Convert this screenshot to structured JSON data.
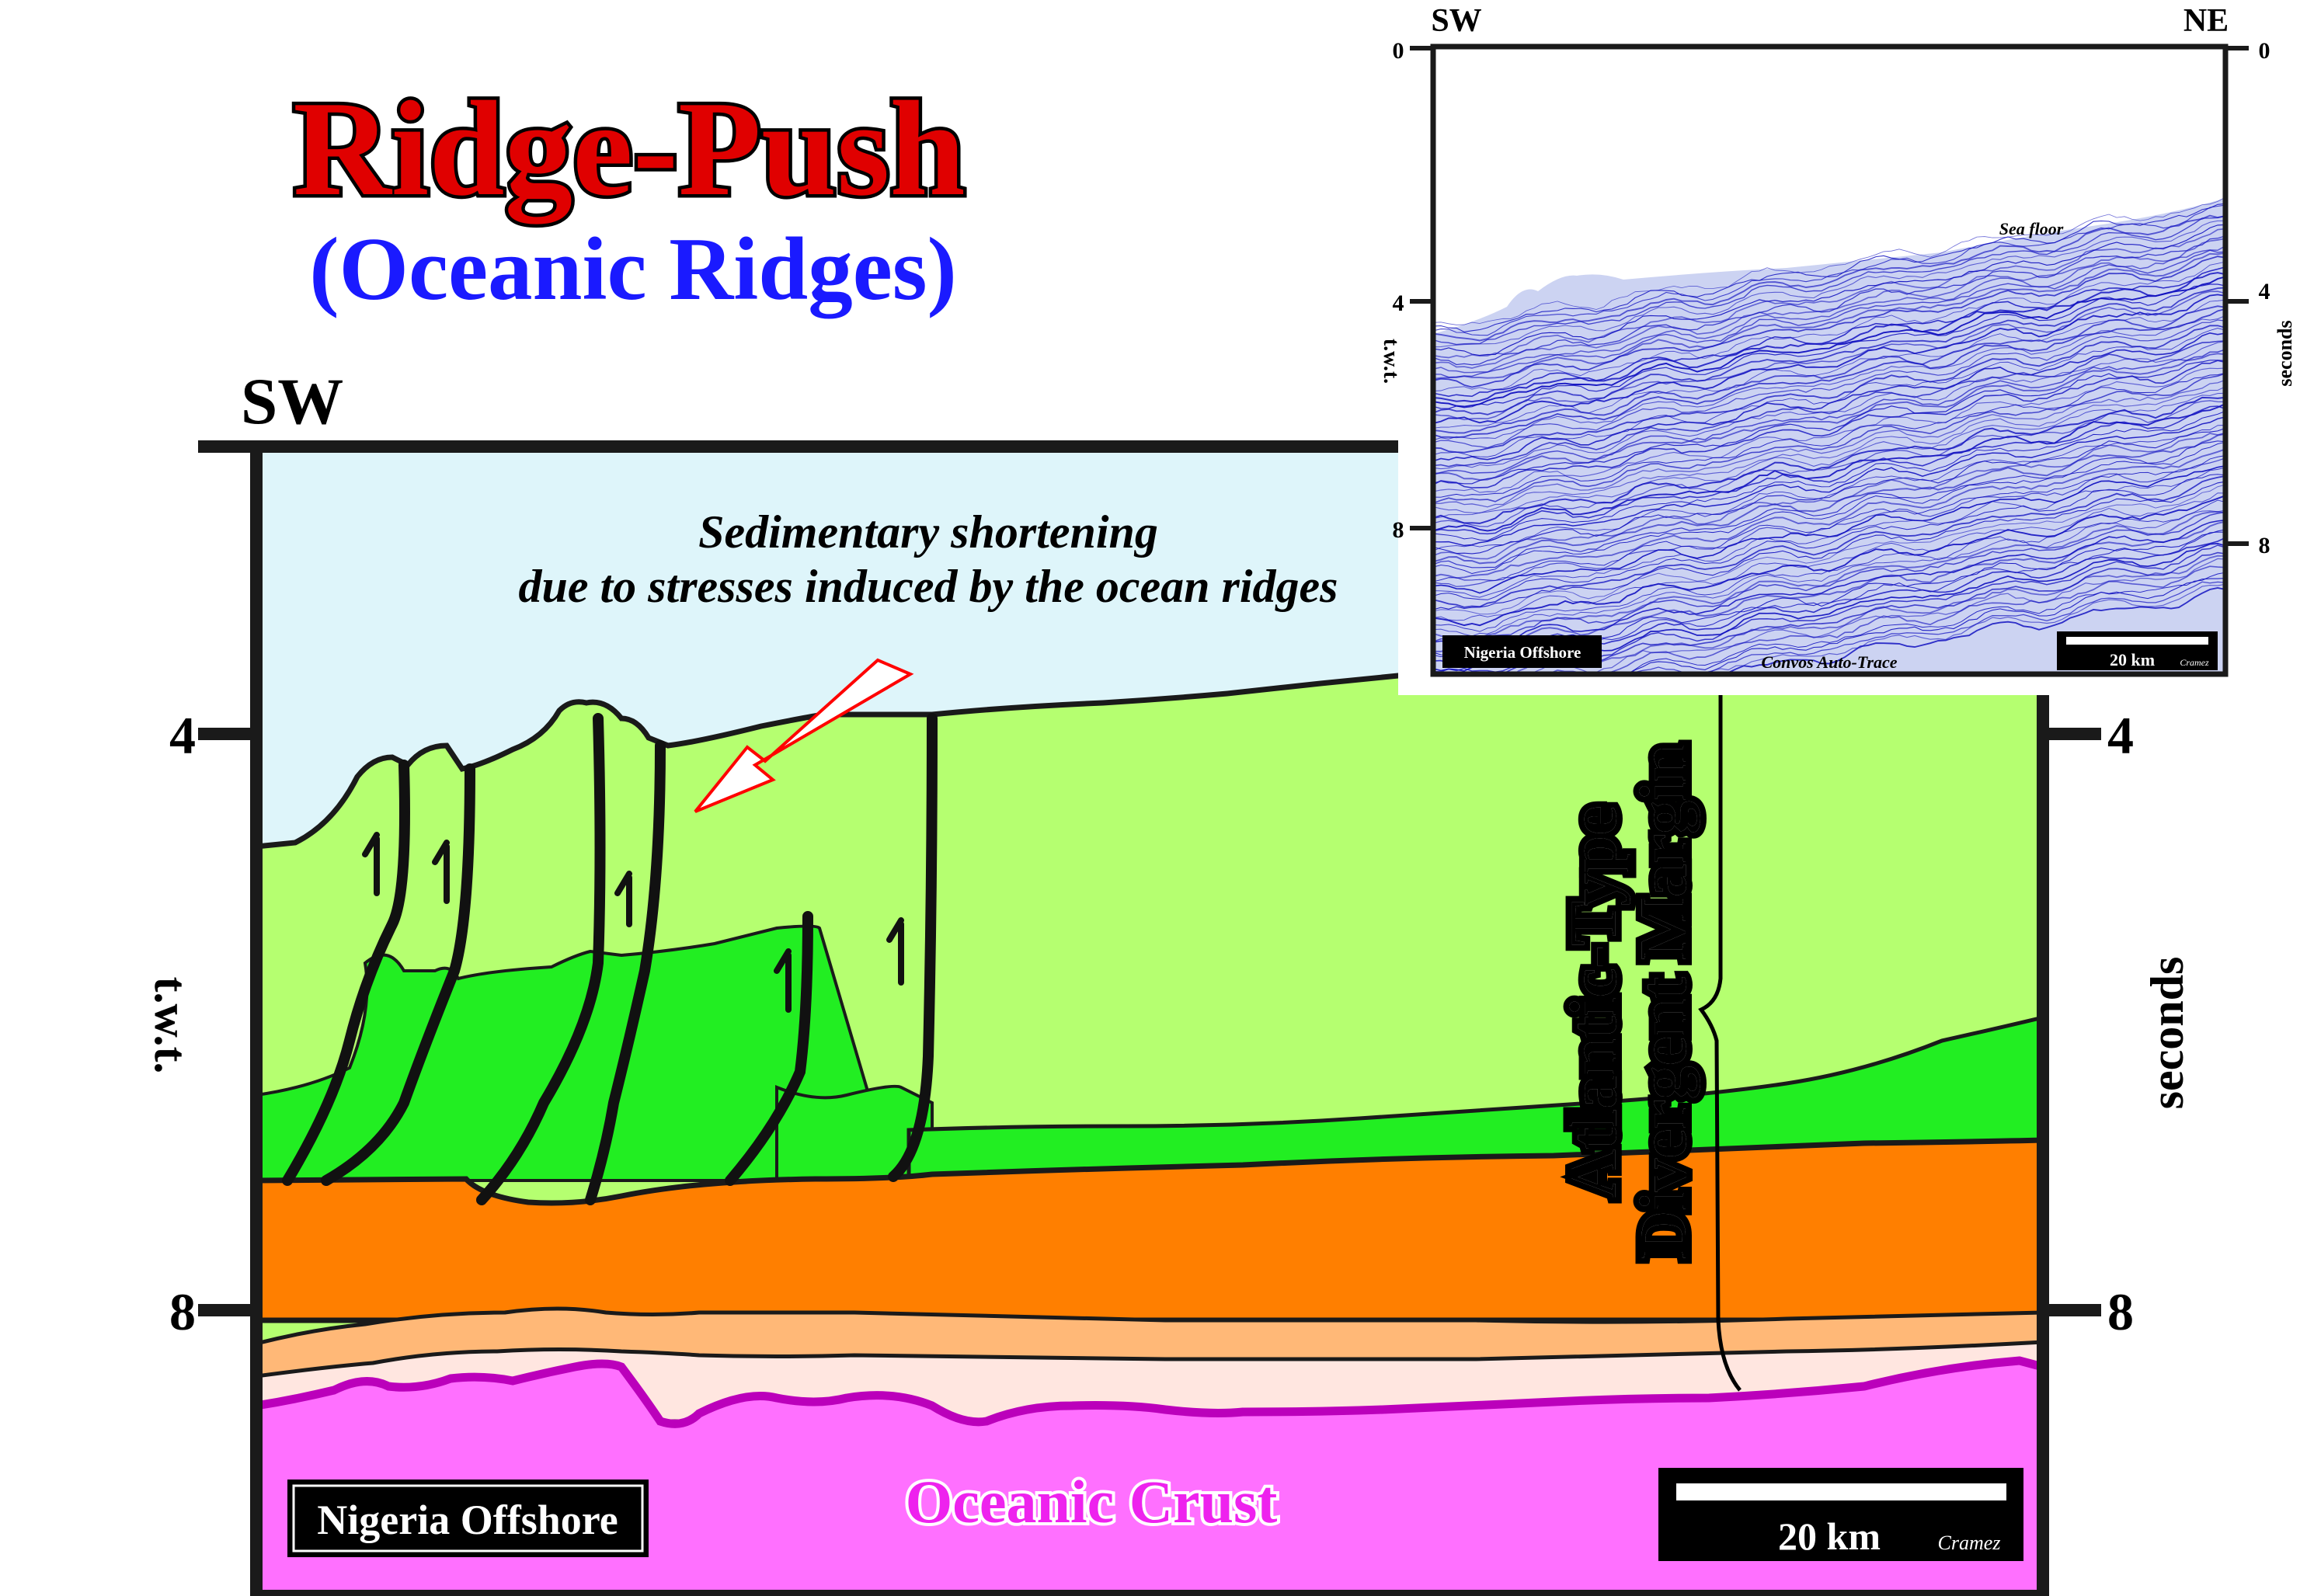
{
  "title": {
    "main": "Ridge-Push",
    "sub": "(Oceanic Ridges)",
    "main_color": "#e00000",
    "sub_color": "#1a1aff"
  },
  "section": {
    "direction_left": "SW",
    "axis_left_label": "t.w.t.",
    "axis_right_label": "seconds",
    "ticks": [
      "4",
      "8"
    ],
    "annotation_line1": "Sedimentary shortening",
    "annotation_line2": "due to stresses induced by the ocean ridges",
    "margin_label_line1": "Atlantic-Type",
    "margin_label_line2": "Divergent Margin",
    "crust_label": "Oceanic Crust",
    "location_label": "Nigeria Offshore",
    "scale_label": "20 km",
    "credit": "Cramez",
    "colors": {
      "water": "#def5fa",
      "upper_sediments": "#b5ff70",
      "thrust_wedges": "#22ee22",
      "orange_layer": "#ff7f00",
      "tan_layer": "#ffb877",
      "pale_layer": "#ffe6e0",
      "oceanic_crust": "#ff70ff",
      "crust_outline": "#bb00bb"
    }
  },
  "inset": {
    "direction_left": "SW",
    "direction_right": "NE",
    "ticks": [
      "0",
      "4",
      "8"
    ],
    "axis_left_label": "t.w.t.",
    "axis_right_label": "seconds",
    "sea_floor_label": "Sea floor",
    "location_label": "Nigeria Offshore",
    "processing_label": "Convos Auto-Trace",
    "scale_label": "20 km",
    "credit": "Cramez",
    "trace_color": "#1010c0"
  }
}
